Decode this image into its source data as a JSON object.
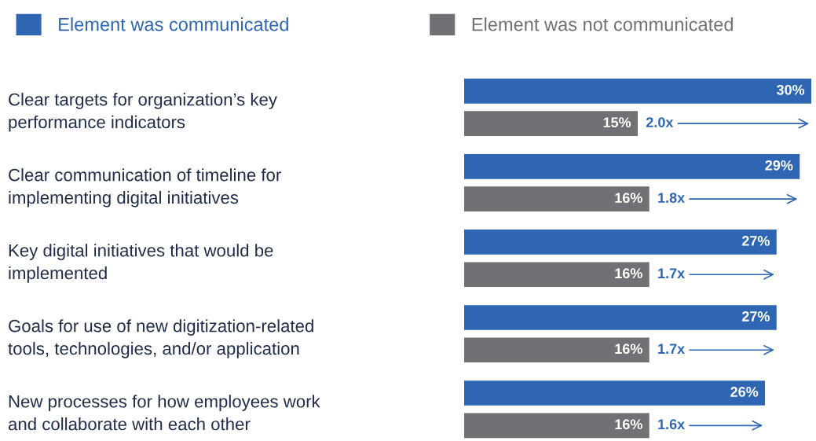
{
  "chart_data": {
    "type": "bar",
    "orientation": "horizontal",
    "categories": [
      "Clear targets for organization’s key\nperformance indicators",
      "Clear communication of timeline for\nimplementing digital initiatives",
      "Key digital initiatives that would be\nimplemented",
      "Goals for use of new digitization-related\ntools, technologies, and/or application",
      "New processes for how employees work\nand collaborate with each other"
    ],
    "series": [
      {
        "name": "Element was communicated",
        "color": "#2f66b3",
        "values": [
          30,
          29,
          27,
          27,
          26
        ],
        "value_labels": [
          "30%",
          "29%",
          "27%",
          "27%",
          "26%"
        ]
      },
      {
        "name": "Element was not communicated",
        "color": "#707175",
        "values": [
          15,
          16,
          16,
          16,
          16
        ],
        "value_labels": [
          "15%",
          "16%",
          "16%",
          "16%",
          "16%"
        ]
      }
    ],
    "annotations": [
      "2.0x",
      "1.8x",
      "1.7x",
      "1.7x",
      "1.6x"
    ],
    "xlim": [
      0,
      30
    ],
    "tick_labels": "y",
    "grid": false,
    "legend": "top"
  }
}
